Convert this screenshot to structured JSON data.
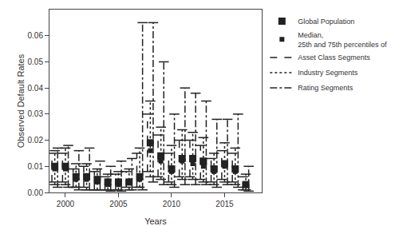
{
  "chart_data": {
    "type": "range",
    "xlabel": "Years",
    "ylabel": "Observed Default Rates",
    "x": [
      1999,
      2000,
      2001,
      2002,
      2003,
      2004,
      2005,
      2006,
      2007,
      2008,
      2009,
      2010,
      2011,
      2012,
      2013,
      2014,
      2015,
      2016,
      2017
    ],
    "xlim": [
      1998.5,
      2018.5
    ],
    "xticks": [
      2000,
      2005,
      2010,
      2015
    ],
    "ylim": [
      0.0,
      0.07
    ],
    "yticks": [
      {
        "value": 0,
        "label": "0.00"
      },
      0.01,
      0.02,
      0.03,
      0.04,
      0.05,
      0.06
    ],
    "color": "#222222",
    "grid": false,
    "legend": "upper right",
    "series": [
      {
        "name": "Global Population",
        "type": "scatter",
        "marker": "square",
        "values": [
          0.01,
          0.01,
          0.006,
          0.006,
          0.005,
          0.004,
          0.004,
          0.004,
          0.006,
          0.019,
          0.014,
          0.009,
          0.013,
          0.013,
          0.012,
          0.009,
          0.011,
          0.009,
          0.003
        ]
      },
      {
        "name": "Median,\n25th and 75th percentiles of",
        "type": "scatter",
        "marker": "square",
        "values": [
          0.009,
          0.009,
          0.005,
          0.005,
          0.004,
          0.003,
          0.003,
          0.004,
          0.005,
          0.016,
          0.012,
          0.008,
          0.012,
          0.011,
          0.01,
          0.008,
          0.01,
          0.008,
          0.003
        ]
      },
      {
        "name": "Asset Class Segments",
        "type": "range",
        "line_style": "dashed",
        "low": [
          0.004,
          0.004,
          0.002,
          0.002,
          0.001,
          0.001,
          0.001,
          0.002,
          0.002,
          0.008,
          0.006,
          0.004,
          0.006,
          0.006,
          0.005,
          0.004,
          0.005,
          0.004,
          0.001
        ],
        "high": [
          0.015,
          0.015,
          0.009,
          0.01,
          0.008,
          0.006,
          0.007,
          0.008,
          0.015,
          0.03,
          0.022,
          0.015,
          0.02,
          0.02,
          0.018,
          0.013,
          0.016,
          0.015,
          0.006
        ]
      },
      {
        "name": "Industry Segments",
        "type": "range",
        "line_style": "dotted",
        "low": [
          0.003,
          0.003,
          0.002,
          0.001,
          0.001,
          0.001,
          0.001,
          0.001,
          0.002,
          0.006,
          0.005,
          0.003,
          0.005,
          0.005,
          0.004,
          0.003,
          0.004,
          0.003,
          0.001
        ],
        "high": [
          0.016,
          0.017,
          0.011,
          0.011,
          0.009,
          0.007,
          0.008,
          0.009,
          0.017,
          0.035,
          0.025,
          0.018,
          0.024,
          0.023,
          0.021,
          0.015,
          0.019,
          0.017,
          0.007
        ]
      },
      {
        "name": "Rating Segments",
        "type": "range",
        "line_style": "dashdot",
        "low": [
          0.002,
          0.002,
          0.001,
          0.001,
          0.001,
          0.0005,
          0.0005,
          0.001,
          0.001,
          0.004,
          0.003,
          0.002,
          0.003,
          0.003,
          0.003,
          0.002,
          0.003,
          0.002,
          0.0005
        ],
        "high": [
          0.017,
          0.018,
          0.016,
          0.017,
          0.012,
          0.01,
          0.012,
          0.013,
          0.065,
          0.065,
          0.05,
          0.03,
          0.04,
          0.038,
          0.035,
          0.028,
          0.028,
          0.03,
          0.01
        ]
      }
    ]
  }
}
